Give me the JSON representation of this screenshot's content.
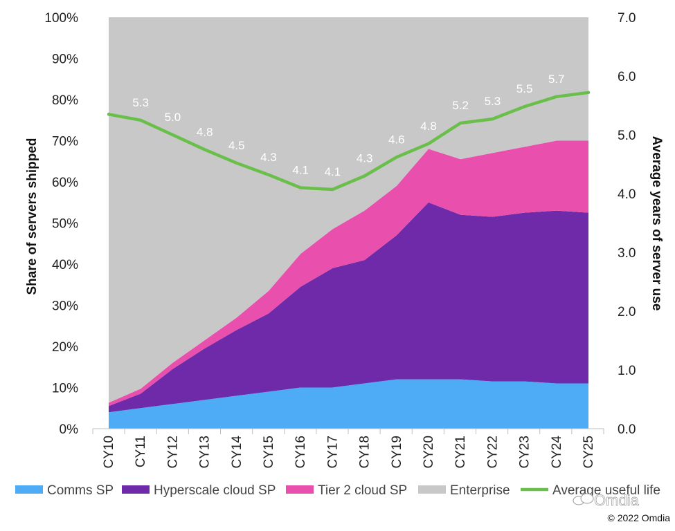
{
  "chart_data": {
    "type": "area",
    "stacked": true,
    "categories": [
      "CY10",
      "CY11",
      "CY12",
      "CY13",
      "CY14",
      "CY15",
      "CY16",
      "CY17",
      "CY18",
      "CY19",
      "CY20",
      "CY21",
      "CY22",
      "CY23",
      "CY24",
      "CY25"
    ],
    "series": [
      {
        "name": "Comms SP",
        "color": "#4eacf7",
        "values": [
          4,
          5,
          6,
          7,
          8,
          9,
          10,
          10,
          11,
          12,
          12,
          12,
          11.5,
          11.5,
          11,
          11
        ]
      },
      {
        "name": "Hyperscale cloud SP",
        "color": "#6e2aa8",
        "values": [
          1.5,
          3.5,
          8.5,
          12.5,
          16,
          19,
          24.5,
          29,
          30,
          35,
          43,
          40,
          40,
          41,
          42,
          41.5
        ]
      },
      {
        "name": "Tier 2 cloud SP",
        "color": "#e94fac",
        "values": [
          0.8,
          1.2,
          1.5,
          2,
          3,
          5.5,
          8,
          9.5,
          12,
          12,
          13,
          13.5,
          15.5,
          16,
          17,
          17.5
        ]
      },
      {
        "name": "Enterprise",
        "color": "#c8c8c8",
        "values": [
          93.7,
          90.3,
          84,
          78.5,
          73,
          66.5,
          57.5,
          51.5,
          47,
          41,
          32,
          34.5,
          33,
          31.5,
          30,
          30
        ]
      }
    ],
    "line": {
      "name": "Average useful life",
      "color": "#6abf4b",
      "axis": "right",
      "values": [
        5.35,
        5.25,
        5.0,
        4.75,
        4.52,
        4.32,
        4.1,
        4.07,
        4.3,
        4.62,
        4.85,
        5.2,
        5.27,
        5.48,
        5.65,
        5.72
      ],
      "labels": [
        "",
        "5.3",
        "5.0",
        "4.8",
        "4.5",
        "4.3",
        "4.1",
        "4.1",
        "4.3",
        "4.6",
        "4.8",
        "5.2",
        "5.3",
        "5.5",
        "5.7",
        ""
      ]
    },
    "ylabel": "Share of servers shipped",
    "y2label": "Average years of server use",
    "ylim": [
      0,
      100
    ],
    "y2lim": [
      0,
      7
    ],
    "yticks": [
      "0%",
      "10%",
      "20%",
      "30%",
      "40%",
      "50%",
      "60%",
      "70%",
      "80%",
      "90%",
      "100%"
    ],
    "y2ticks": [
      "0.0",
      "1.0",
      "2.0",
      "3.0",
      "4.0",
      "5.0",
      "6.0",
      "7.0"
    ],
    "legend": [
      "Comms SP",
      "Hyperscale cloud SP",
      "Tier 2 cloud SP",
      "Enterprise",
      "Average useful life"
    ],
    "legend_position": "bottom"
  },
  "watermark": "Omdia",
  "copyright": "© 2022 Omdia"
}
